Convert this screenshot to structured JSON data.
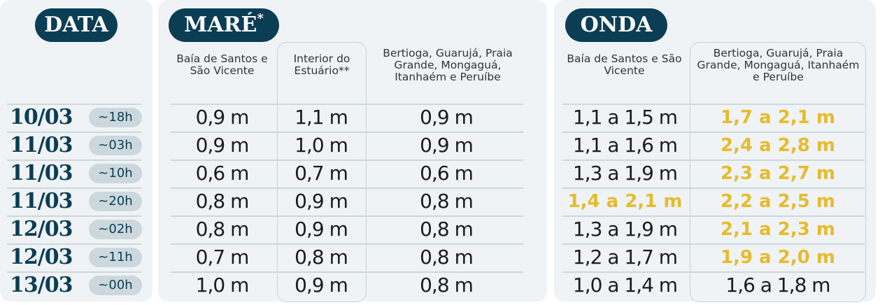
{
  "data": {
    "title": "DATA"
  },
  "mare": {
    "title": "MARÉ",
    "asterisk": "*",
    "headers": [
      "Baía de Santos e São Vicente",
      "Interior do Estuário**",
      "Bertioga, Guarujá, Praia Grande, Mongaguá, Itanhaém e Peruíbe"
    ]
  },
  "onda": {
    "title": "ONDA",
    "headers": [
      "Baía de Santos e São Vicente",
      "Bertioga, Guarujá, Praia Grande, Mongaguá, Itanhaém e Peruíbe"
    ]
  },
  "highlight_color": "#e6bb2c",
  "rows": [
    {
      "date": "10/03",
      "time": "~18h",
      "mare": [
        "0,9 m",
        "1,1 m",
        "0,9 m"
      ],
      "onda": [
        "1,1 a 1,5 m",
        "1,7 a 2,1 m"
      ],
      "onda_highlight": [
        false,
        true
      ]
    },
    {
      "date": "11/03",
      "time": "~03h",
      "mare": [
        "0,9 m",
        "1,0 m",
        "0,9 m"
      ],
      "onda": [
        "1,1 a 1,6 m",
        "2,4 a 2,8 m"
      ],
      "onda_highlight": [
        false,
        true
      ]
    },
    {
      "date": "11/03",
      "time": "~10h",
      "mare": [
        "0,6 m",
        "0,7 m",
        "0,6 m"
      ],
      "onda": [
        "1,3 a 1,9 m",
        "2,3 a 2,7 m"
      ],
      "onda_highlight": [
        false,
        true
      ]
    },
    {
      "date": "11/03",
      "time": "~20h",
      "mare": [
        "0,8 m",
        "0,9 m",
        "0,8 m"
      ],
      "onda": [
        "1,4 a 2,1 m",
        "2,2 a 2,5 m"
      ],
      "onda_highlight": [
        true,
        true
      ]
    },
    {
      "date": "12/03",
      "time": "~02h",
      "mare": [
        "0,8 m",
        "0,9 m",
        "0,8 m"
      ],
      "onda": [
        "1,3 a 1,9 m",
        "2,1 a 2,3 m"
      ],
      "onda_highlight": [
        false,
        true
      ]
    },
    {
      "date": "12/03",
      "time": "~11h",
      "mare": [
        "0,7 m",
        "0,8 m",
        "0,8 m"
      ],
      "onda": [
        "1,2 a 1,7 m",
        "1,9 a 2,0 m"
      ],
      "onda_highlight": [
        false,
        true
      ]
    },
    {
      "date": "13/03",
      "time": "~00h",
      "mare": [
        "1,0 m",
        "0,9 m",
        "0,8 m"
      ],
      "onda": [
        "1,0 a 1,4 m",
        "1,6 a 1,8 m"
      ],
      "onda_highlight": [
        false,
        false
      ]
    }
  ]
}
